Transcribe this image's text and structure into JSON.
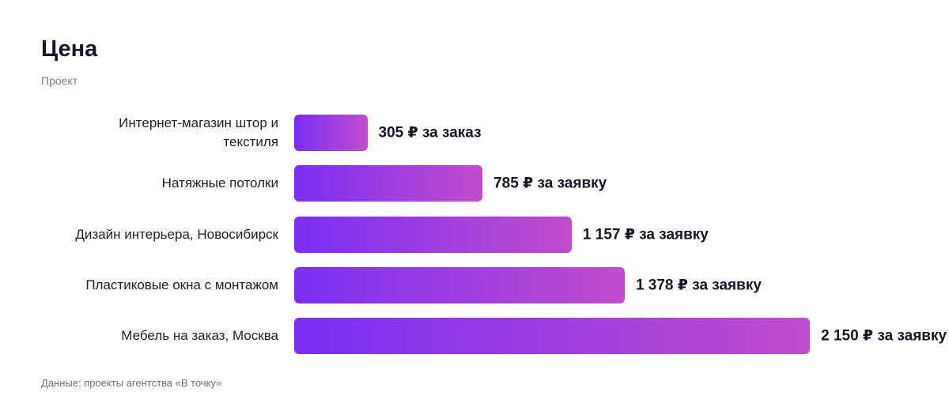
{
  "chart_data": {
    "type": "bar",
    "orientation": "horizontal",
    "title": "Цена",
    "subtitle": "Проект",
    "categories": [
      "Интернет-магазин штор и текстиля",
      "Натяжные потолки",
      "Дизайн интерьера, Новосибирск",
      "Пластиковые окна с монтажом",
      "Мебель на заказ, Москва"
    ],
    "values": [
      305,
      785,
      1157,
      1378,
      2150
    ],
    "value_labels": [
      "305 ₽ за заказ",
      "785 ₽ за заявку",
      "1 157 ₽ за заявку",
      "1 378 ₽ за заявку",
      "2 150 ₽ за заявку"
    ],
    "color": [
      "#7a2ff4",
      "#c24cce"
    ],
    "note": "Данные: проекты агентства «В точку»"
  }
}
